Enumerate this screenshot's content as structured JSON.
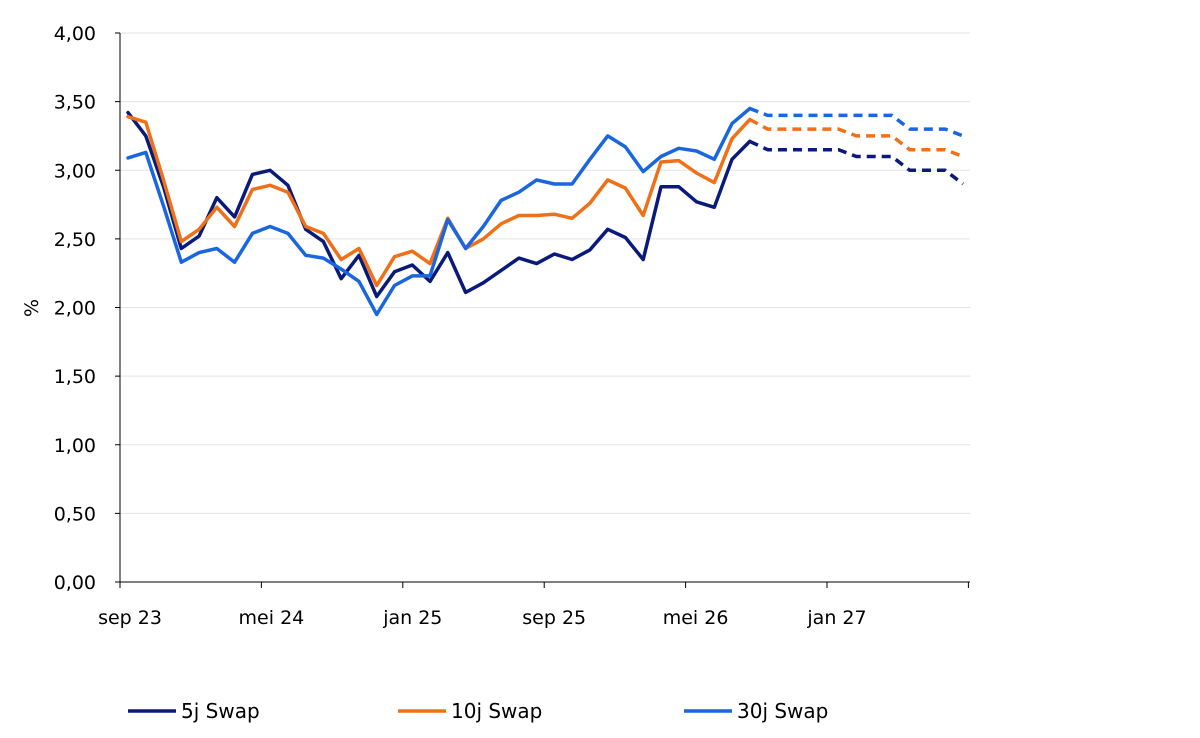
{
  "chart_data": {
    "type": "line",
    "ylabel": "%",
    "xlabel": "",
    "ylim": [
      0,
      4
    ],
    "y_ticks": [
      "0,00",
      "0,50",
      "1,00",
      "1,50",
      "2,00",
      "2,50",
      "3,00",
      "3,50",
      "4,00"
    ],
    "x_ticks": [
      "sep 23",
      "mei 24",
      "jan 25",
      "sep 25",
      "mei 26",
      "jan 27"
    ],
    "grid": "horizontal",
    "legend_position": "bottom",
    "series": [
      {
        "name": "5j Swap",
        "color": "#0a1a7a",
        "values": [
          3.42,
          3.25,
          2.88,
          2.43,
          2.52,
          2.8,
          2.66,
          2.97,
          3.0,
          2.89,
          2.57,
          2.48,
          2.21,
          2.38,
          2.08,
          2.26,
          2.31,
          2.19,
          2.4,
          2.11,
          2.18,
          2.27,
          2.36,
          2.32,
          2.39,
          2.35,
          2.42,
          2.57,
          2.51,
          2.35,
          2.88,
          2.88,
          2.77,
          2.73,
          3.08,
          3.21
        ],
        "forecast": [
          3.21,
          3.15,
          3.15,
          3.15,
          3.15,
          3.15,
          3.1,
          3.1,
          3.1,
          3.0,
          3.0,
          3.0,
          2.9
        ]
      },
      {
        "name": "10j Swap",
        "color": "#f07018",
        "values": [
          3.39,
          3.35,
          2.93,
          2.48,
          2.57,
          2.73,
          2.59,
          2.86,
          2.89,
          2.84,
          2.59,
          2.54,
          2.35,
          2.43,
          2.16,
          2.37,
          2.41,
          2.32,
          2.65,
          2.43,
          2.5,
          2.61,
          2.67,
          2.67,
          2.68,
          2.65,
          2.76,
          2.93,
          2.87,
          2.67,
          3.06,
          3.07,
          2.98,
          2.91,
          3.23,
          3.37
        ],
        "forecast": [
          3.37,
          3.3,
          3.3,
          3.3,
          3.3,
          3.3,
          3.25,
          3.25,
          3.25,
          3.15,
          3.15,
          3.15,
          3.1
        ]
      },
      {
        "name": "30j Swap",
        "color": "#1a66e0",
        "values": [
          3.09,
          3.13,
          2.74,
          2.33,
          2.4,
          2.43,
          2.33,
          2.54,
          2.59,
          2.54,
          2.38,
          2.36,
          2.28,
          2.19,
          1.95,
          2.16,
          2.23,
          2.23,
          2.64,
          2.43,
          2.59,
          2.78,
          2.84,
          2.93,
          2.9,
          2.9,
          3.08,
          3.25,
          3.17,
          2.99,
          3.1,
          3.16,
          3.14,
          3.08,
          3.34,
          3.45
        ],
        "forecast": [
          3.45,
          3.4,
          3.4,
          3.4,
          3.4,
          3.4,
          3.4,
          3.4,
          3.4,
          3.3,
          3.3,
          3.3,
          3.25
        ]
      }
    ]
  }
}
